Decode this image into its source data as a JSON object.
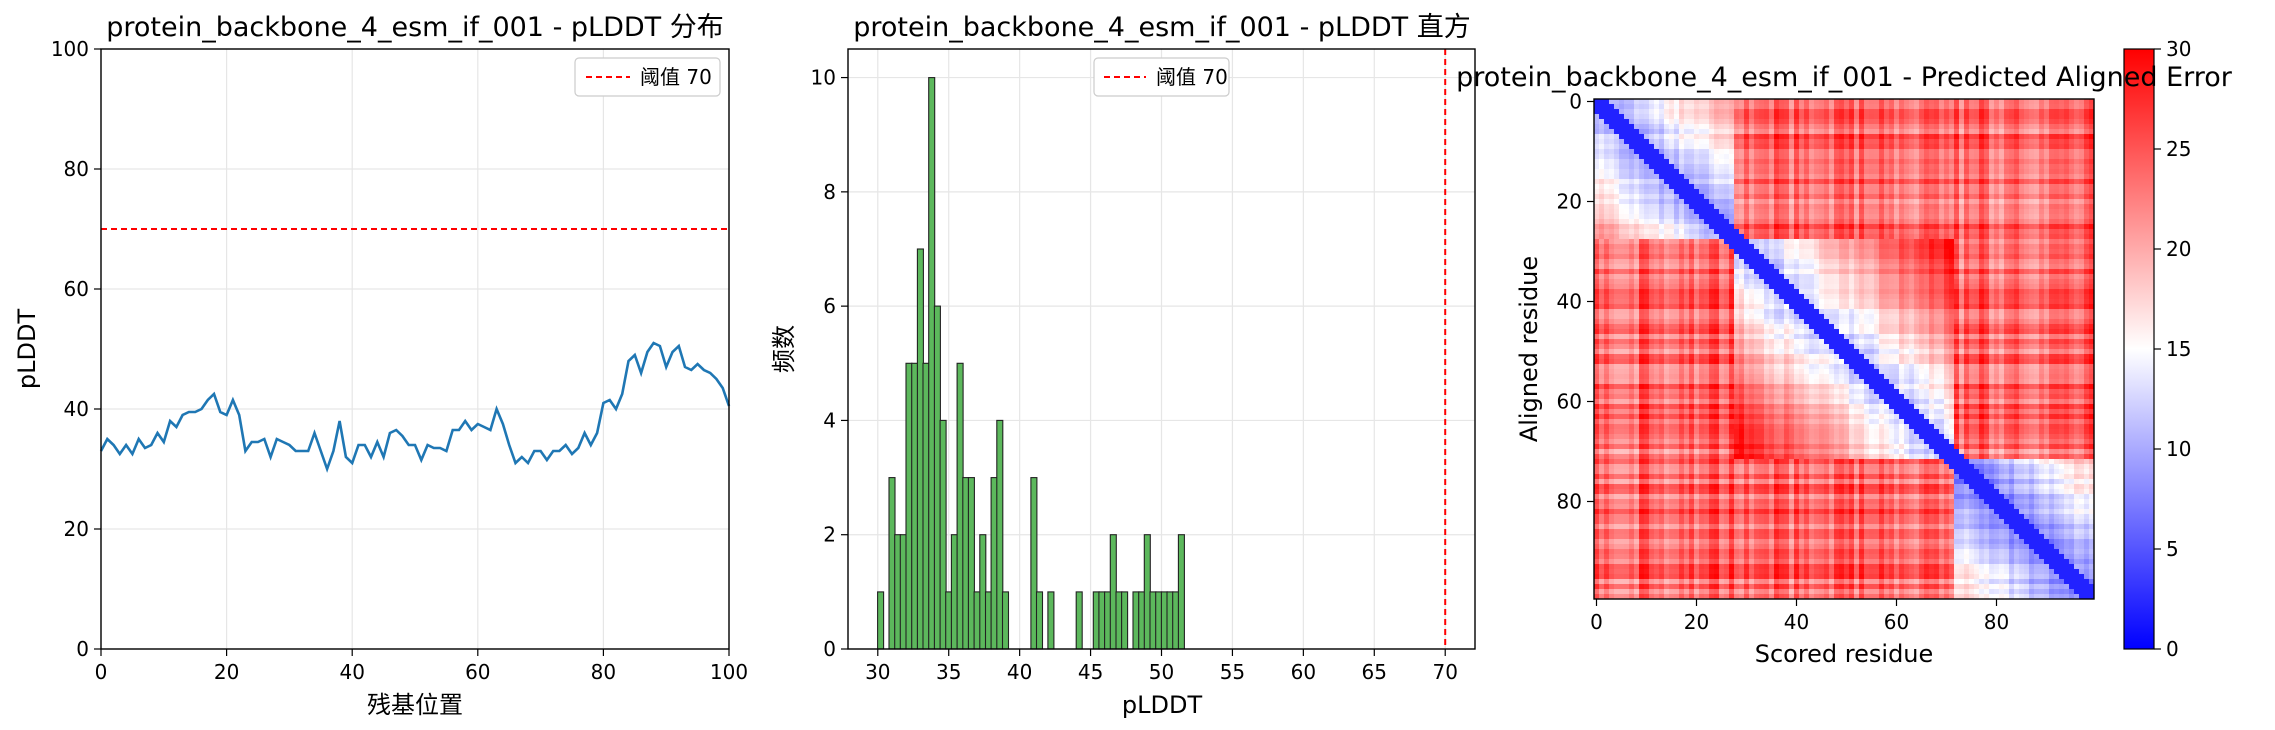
{
  "chart_data": [
    {
      "type": "line",
      "title": "protein_backbone_4_esm_if_001 - pLDDT 分布",
      "xlabel": "残基位置",
      "ylabel": "pLDDT",
      "xlim": [
        0,
        100
      ],
      "ylim": [
        0,
        100
      ],
      "xticks": [
        "0",
        "20",
        "40",
        "60",
        "80",
        "100"
      ],
      "yticks": [
        "0",
        "20",
        "40",
        "60",
        "80",
        "100"
      ],
      "grid": true,
      "legend_position": "top-right",
      "line_color": "#1f77b4",
      "series": [
        {
          "x": [
            0,
            1,
            2,
            3,
            4,
            5,
            6,
            7,
            8,
            9,
            10,
            11,
            12,
            13,
            14,
            15,
            16,
            17,
            18,
            19,
            20,
            21,
            22,
            23,
            24,
            25,
            26,
            27,
            28,
            29,
            30,
            31,
            32,
            33,
            34,
            35,
            36,
            37,
            38,
            39,
            40,
            41,
            42,
            43,
            44,
            45,
            46,
            47,
            48,
            49,
            50,
            51,
            52,
            53,
            54,
            55,
            56,
            57,
            58,
            59,
            60,
            61,
            62,
            63,
            64,
            65,
            66,
            67,
            68,
            69,
            70,
            71,
            72,
            73,
            74,
            75,
            76,
            77,
            78,
            79,
            80,
            81,
            82,
            83,
            84,
            85,
            86,
            87,
            88,
            89,
            90,
            91,
            92,
            93,
            94,
            95,
            96,
            97,
            98,
            99,
            100
          ],
          "values": [
            33,
            35,
            34,
            32.5,
            34,
            32.5,
            35,
            33.5,
            34,
            36,
            34.5,
            38,
            37,
            39,
            39.5,
            39.5,
            40,
            41.5,
            42.5,
            39.5,
            39,
            41.5,
            39,
            33,
            34.5,
            34.5,
            35,
            32,
            35,
            34.5,
            34,
            33,
            33,
            33,
            36,
            33,
            30,
            33,
            38,
            32,
            31,
            34,
            34,
            32,
            34.5,
            32,
            36,
            36.5,
            35.5,
            34,
            34,
            31.5,
            34,
            33.5,
            33.5,
            33,
            36.5,
            36.5,
            38,
            36.5,
            37.5,
            37,
            36.5,
            40,
            37.5,
            34,
            31,
            32,
            31,
            33,
            33,
            31.5,
            33,
            33,
            34,
            32.5,
            33.5,
            36,
            34,
            36,
            41,
            41.5,
            40,
            42.5,
            48,
            49,
            46,
            49.5,
            51,
            50.5,
            47,
            49.5,
            50.5,
            47,
            46.5,
            47.5,
            46.5,
            46,
            45,
            43.5,
            40.5
          ]
        }
      ],
      "threshold": {
        "label": "阈值 70",
        "value": 70,
        "color": "#ff0000"
      }
    },
    {
      "type": "bar",
      "title": "protein_backbone_4_esm_if_001 - pLDDT 直方",
      "xlabel": "pLDDT",
      "ylabel": "频数",
      "xlim": [
        27.9,
        72.1
      ],
      "ylim": [
        0,
        10.5
      ],
      "xticks": [
        "30",
        "35",
        "40",
        "45",
        "50",
        "55",
        "60",
        "65",
        "70"
      ],
      "yticks": [
        "0",
        "2",
        "4",
        "6",
        "8",
        "10"
      ],
      "grid": true,
      "legend_position": "top-center",
      "bar_color": "#5cb85c",
      "bar_edge_color": "#222222",
      "bin_width": 0.42,
      "bins": [
        {
          "x": 30.2,
          "count": 1
        },
        {
          "x": 31.0,
          "count": 3
        },
        {
          "x": 31.4,
          "count": 2
        },
        {
          "x": 31.8,
          "count": 2
        },
        {
          "x": 32.2,
          "count": 5
        },
        {
          "x": 32.6,
          "count": 5
        },
        {
          "x": 33.0,
          "count": 7
        },
        {
          "x": 33.4,
          "count": 5
        },
        {
          "x": 33.8,
          "count": 10
        },
        {
          "x": 34.2,
          "count": 6
        },
        {
          "x": 34.6,
          "count": 4
        },
        {
          "x": 35.0,
          "count": 1
        },
        {
          "x": 35.4,
          "count": 2
        },
        {
          "x": 35.8,
          "count": 5
        },
        {
          "x": 36.2,
          "count": 3
        },
        {
          "x": 36.6,
          "count": 3
        },
        {
          "x": 37.0,
          "count": 1
        },
        {
          "x": 37.4,
          "count": 2
        },
        {
          "x": 37.8,
          "count": 1
        },
        {
          "x": 38.2,
          "count": 3
        },
        {
          "x": 38.6,
          "count": 4
        },
        {
          "x": 39.0,
          "count": 1
        },
        {
          "x": 41.0,
          "count": 3
        },
        {
          "x": 41.4,
          "count": 1
        },
        {
          "x": 42.2,
          "count": 1
        },
        {
          "x": 44.2,
          "count": 1
        },
        {
          "x": 45.4,
          "count": 1
        },
        {
          "x": 45.8,
          "count": 1
        },
        {
          "x": 46.2,
          "count": 1
        },
        {
          "x": 46.6,
          "count": 2
        },
        {
          "x": 47.0,
          "count": 1
        },
        {
          "x": 47.4,
          "count": 1
        },
        {
          "x": 48.2,
          "count": 1
        },
        {
          "x": 48.6,
          "count": 1
        },
        {
          "x": 49.0,
          "count": 2
        },
        {
          "x": 49.4,
          "count": 1
        },
        {
          "x": 49.8,
          "count": 1
        },
        {
          "x": 50.2,
          "count": 1
        },
        {
          "x": 50.6,
          "count": 1
        },
        {
          "x": 51.0,
          "count": 1
        },
        {
          "x": 51.4,
          "count": 2
        }
      ],
      "threshold": {
        "label": "阈值 70",
        "value": 70,
        "color": "#ff0000"
      }
    },
    {
      "type": "heatmap",
      "title": "protein_backbone_4_esm_if_001 - Predicted Aligned Error",
      "xlabel": "Scored residue",
      "ylabel": "Aligned residue",
      "size": [
        100,
        100
      ],
      "xticks": [
        "0",
        "20",
        "40",
        "60",
        "80"
      ],
      "yticks": [
        "0",
        "20",
        "40",
        "60",
        "80"
      ],
      "colormap": "bwr",
      "color_low": "#0000ff",
      "color_mid": "#ffffff",
      "color_high": "#ff0000",
      "vmin": 0,
      "vmax": 30,
      "colorbar_ticks": [
        "0",
        "5",
        "10",
        "15",
        "20",
        "25",
        "30"
      ],
      "domains": [
        {
          "start": 0,
          "end": 28,
          "mean_error": 11
        },
        {
          "start": 28,
          "end": 72,
          "mean_error": 14
        },
        {
          "start": 72,
          "end": 100,
          "mean_error": 5
        }
      ]
    }
  ]
}
